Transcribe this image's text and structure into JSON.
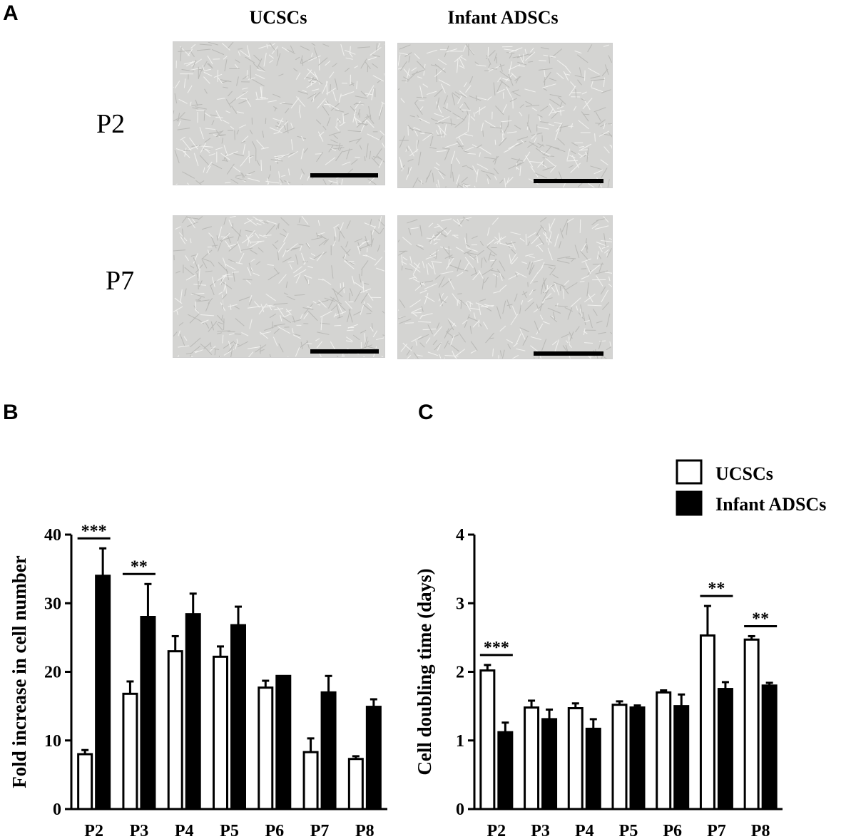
{
  "panels": {
    "a": {
      "letter": "A",
      "columns": [
        "UCSCs",
        "Infant ADSCs"
      ],
      "rows": [
        "P2",
        "P7"
      ]
    },
    "b": {
      "letter": "B"
    },
    "c": {
      "letter": "C"
    }
  },
  "legend": {
    "items": [
      {
        "label": "UCSCs",
        "color": "#ffffff"
      },
      {
        "label": "Infant ADSCs",
        "color": "#000000"
      }
    ]
  },
  "chart_data": [
    {
      "type": "bar",
      "panel": "B",
      "ylabel": "Fold increase in cell number",
      "xlabel": "",
      "categories": [
        "P2",
        "P3",
        "P4",
        "P5",
        "P6",
        "P7",
        "P8"
      ],
      "ylim": [
        0,
        40
      ],
      "yticks": [
        0,
        10,
        20,
        30,
        40
      ],
      "series": [
        {
          "name": "UCSCs",
          "values": [
            8,
            16.8,
            23,
            22.2,
            17.7,
            8.3,
            7.3
          ],
          "errors": [
            0.6,
            1.8,
            2.2,
            1.5,
            1.0,
            2.0,
            0.4
          ],
          "color": "#ffffff"
        },
        {
          "name": "Infant ADSCs",
          "values": [
            34,
            28,
            28.4,
            26.8,
            19.4,
            17,
            14.9
          ],
          "errors": [
            4.0,
            4.8,
            3.0,
            2.7,
            0.0,
            2.4,
            1.1
          ],
          "color": "#000000"
        }
      ],
      "significance": [
        {
          "category": "P2",
          "label": "***"
        },
        {
          "category": "P3",
          "label": "**"
        }
      ]
    },
    {
      "type": "bar",
      "panel": "C",
      "ylabel": "Cell doubling time (days)",
      "xlabel": "",
      "categories": [
        "P2",
        "P3",
        "P4",
        "P5",
        "P6",
        "P7",
        "P8"
      ],
      "ylim": [
        0,
        4
      ],
      "yticks": [
        0,
        1,
        2,
        3,
        4
      ],
      "series": [
        {
          "name": "UCSCs",
          "values": [
            2.02,
            1.48,
            1.47,
            1.52,
            1.7,
            2.53,
            2.47
          ],
          "errors": [
            0.08,
            0.1,
            0.07,
            0.05,
            0.03,
            0.43,
            0.05
          ],
          "color": "#ffffff"
        },
        {
          "name": "Infant ADSCs",
          "values": [
            1.12,
            1.31,
            1.17,
            1.48,
            1.5,
            1.75,
            1.8
          ],
          "errors": [
            0.14,
            0.14,
            0.14,
            0.03,
            0.17,
            0.1,
            0.04
          ],
          "color": "#000000"
        }
      ],
      "significance": [
        {
          "category": "P2",
          "label": "***"
        },
        {
          "category": "P7",
          "label": "**"
        },
        {
          "category": "P8",
          "label": "**"
        }
      ]
    }
  ]
}
